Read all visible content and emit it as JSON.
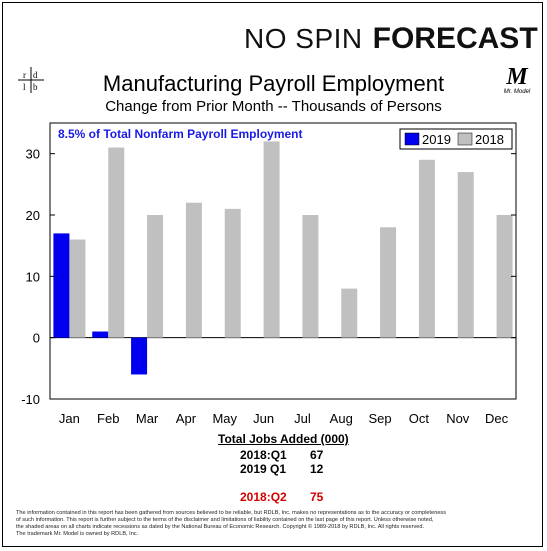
{
  "brand": {
    "part1": "NO SPIN",
    "part2": "FORECAST"
  },
  "logo_left": {
    "text": "rd lb"
  },
  "logo_right": {
    "mark": "M",
    "caption": "Mr. Model"
  },
  "title": "Manufacturing Payroll Employment",
  "subtitle": "Change from Prior Month -- Thousands of Persons",
  "annotation": "8.5% of Total Nonfarm Payroll Employment",
  "colors": {
    "s2019": "#0000ee",
    "s2018": "#c0c0c0",
    "annotation": "#1a1ae6",
    "red": "#d40000"
  },
  "chart_data": {
    "type": "bar",
    "categories": [
      "Jan",
      "Feb",
      "Mar",
      "Apr",
      "May",
      "Jun",
      "Jul",
      "Aug",
      "Sep",
      "Oct",
      "Nov",
      "Dec"
    ],
    "series": [
      {
        "name": "2019",
        "values": [
          17,
          1,
          -6,
          null,
          null,
          null,
          null,
          null,
          null,
          null,
          null,
          null
        ]
      },
      {
        "name": "2018",
        "values": [
          16,
          31,
          20,
          22,
          21,
          32,
          20,
          8,
          18,
          29,
          27,
          20
        ]
      }
    ],
    "yticks": [
      -10,
      0,
      10,
      20,
      30
    ],
    "ylim": [
      -10,
      35
    ],
    "legend": "top-right",
    "grid": false
  },
  "jobs": {
    "header": "Total Jobs Added (000)",
    "rows": [
      {
        "label": "2018:Q1",
        "value": "67"
      },
      {
        "label": "2019 Q1",
        "value": "12"
      },
      {
        "label": "2018:Q2",
        "value": "75"
      }
    ]
  },
  "disclaimer": {
    "line1": "The information contained in this report has been gathered from sources believed to be reliable, but RDLB, Inc. makes no representations as to the accuracy or completeness",
    "line2": "of such information. This report is further subject to the terms of the disclaimer and limitations of liability contained on the last page of this report. Unless otherwise noted,",
    "line3": "the shaded areas on all charts indicate recessions as dated by the National Bureau of Economic Research. Copyright © 1989-2018 by RDLB, Inc. All rights reserved.",
    "line4": "The trademark Mr. Model is owned by RDLB, Inc."
  }
}
